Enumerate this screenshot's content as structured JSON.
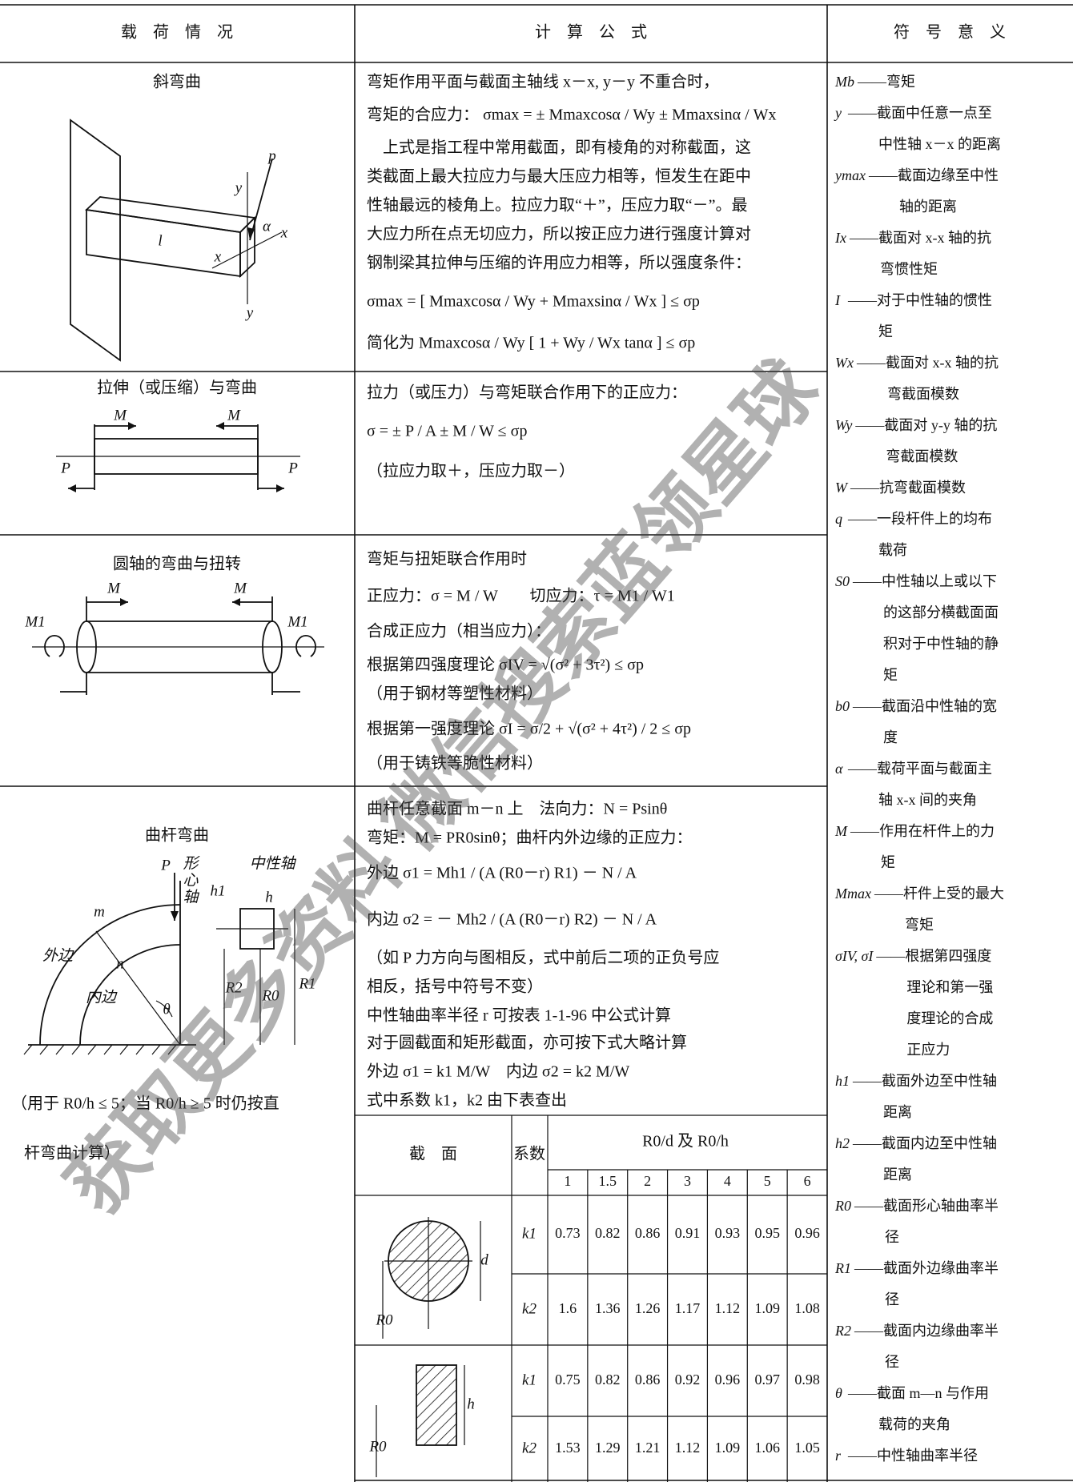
{
  "header": {
    "columns": [
      "载　荷　情　况",
      "计　算　公　式",
      "符　号　意　义"
    ]
  },
  "load_cases": [
    {
      "title": "斜弯曲",
      "figure_labels": [
        "p",
        "y",
        "α",
        "x",
        "l",
        "x",
        "y"
      ],
      "formulas": [
        "弯矩作用平面与截面主轴线 x－x, y－y 不重合时，",
        "弯矩的合应力：  σmax = ± Mmaxcosα / Wy ± Mmaxsinα / Wx",
        "　上式是指工程中常用截面，即有棱角的对称截面，这",
        "类截面上最大拉应力与最大压应力相等，恒发生在距中",
        "性轴最远的棱角上。拉应力取“＋”，压应力取“－”。最",
        "大应力所在点无切应力，所以按正应力进行强度计算对",
        "钢制梁其拉伸与压缩的许用应力相等，所以强度条件：",
        "σmax = [ Mmaxcosα / Wy + Mmaxsinα / Wx ] ≤ σp",
        "简化为 Mmaxcosα / Wy [ 1 + Wy / Wx tanα ] ≤ σp"
      ]
    },
    {
      "title": "拉伸（或压缩）与弯曲",
      "figure_labels": [
        "M",
        "M",
        "P",
        "P"
      ],
      "formulas": [
        "拉力（或压力）与弯矩联合作用下的正应力：",
        "σ = ± P / A ± M / W ≤ σp",
        "（拉应力取＋，压应力取－）"
      ]
    },
    {
      "title": "圆轴的弯曲与扭转",
      "figure_labels": [
        "M",
        "M",
        "M1",
        "M1"
      ],
      "formulas": [
        "弯矩与扭矩联合作用时",
        "正应力：σ = M / W　　切应力：τ = M1 / W1",
        "合成正应力（相当应力）：",
        "根据第四强度理论 σIV = √(σ² + 3τ²) ≤ σp",
        "（用于钢材等塑性材料）",
        "根据第一强度理论 σI = σ/2 + √(σ² + 4τ²) / 2 ≤ σp",
        "（用于铸铁等脆性材料）"
      ]
    },
    {
      "title": "曲杆弯曲",
      "figure_labels": [
        "P",
        "形",
        "心",
        "轴",
        "中性轴",
        "h1",
        "h",
        "m",
        "n",
        "外边",
        "内边",
        "θ",
        "R2",
        "R0",
        "R1"
      ],
      "note": [
        "（用于 R0/h ≤ 5；当 R0/h ≥ 5 时仍按直",
        "杆弯曲计算）"
      ],
      "formulas": [
        "曲杆任意截面 m－n 上　法向力：N = Psinθ",
        "弯矩：M = PR0sinθ；曲杆内外边缘的正应力：",
        "外边 σ1 = Mh1 / (A (R0－r) R1) － N / A",
        "内边 σ2 = － Mh2 / (A (R0－r) R2) － N / A",
        "（如 P 力方向与图相反，式中前后二项的正负号应",
        "相反，括号中符号不变）",
        "中性轴曲率半径 r 可按表 1-1-96 中公式计算",
        "对于圆截面和矩形截面，亦可按下式大略计算",
        "外边 σ1 = k1 M/W　内边 σ2 = k2 M/W",
        "式中系数 k1，k2 由下表查出"
      ]
    }
  ],
  "coefficient_table": {
    "headers": {
      "section": "截　面",
      "coefficient": "系数",
      "ratio": "R0/d 及 R0/h"
    },
    "ratios": [
      1,
      1.5,
      2,
      3,
      4,
      5,
      6
    ],
    "sections": [
      {
        "figure_labels": [
          "d",
          "R0"
        ],
        "rows": [
          {
            "name": "k1",
            "values": [
              0.73,
              0.82,
              0.86,
              0.91,
              0.93,
              0.95,
              0.96
            ]
          },
          {
            "name": "k2",
            "values": [
              1.6,
              1.36,
              1.26,
              1.17,
              1.12,
              1.09,
              1.08
            ]
          }
        ]
      },
      {
        "figure_labels": [
          "h",
          "R0"
        ],
        "rows": [
          {
            "name": "k1",
            "values": [
              0.75,
              0.82,
              0.86,
              0.92,
              0.96,
              0.97,
              0.98
            ]
          },
          {
            "name": "k2",
            "values": [
              1.53,
              1.29,
              1.21,
              1.12,
              1.09,
              1.06,
              1.05
            ]
          }
        ]
      }
    ]
  },
  "symbols": [
    {
      "symbol": "Mb",
      "lines": [
        "——弯矩"
      ]
    },
    {
      "symbol": "y",
      "lines": [
        "——截面中任意一点至",
        "中性轴 x－x 的距离"
      ]
    },
    {
      "symbol": "ymax",
      "lines": [
        "——截面边缘至中性",
        "轴的距离"
      ]
    },
    {
      "symbol": "Ix",
      "lines": [
        "——截面对 x-x 轴的抗",
        "弯惯性矩"
      ]
    },
    {
      "symbol": "I",
      "lines": [
        "——对于中性轴的惯性",
        "矩"
      ]
    },
    {
      "symbol": "Wx",
      "lines": [
        "——截面对 x-x 轴的抗",
        "弯截面模数"
      ]
    },
    {
      "symbol": "Wy",
      "lines": [
        "——截面对 y-y 轴的抗",
        "弯截面模数"
      ]
    },
    {
      "symbol": "W",
      "lines": [
        "——抗弯截面模数"
      ]
    },
    {
      "symbol": "q",
      "lines": [
        "——一段杆件上的均布",
        "载荷"
      ]
    },
    {
      "symbol": "S0",
      "lines": [
        "——中性轴以上或以下",
        "的这部分横截面面",
        "积对于中性轴的静",
        "矩"
      ]
    },
    {
      "symbol": "b0",
      "lines": [
        "——截面沿中性轴的宽",
        "度"
      ]
    },
    {
      "symbol": "α",
      "lines": [
        "——载荷平面与截面主",
        "轴 x-x 间的夹角"
      ]
    },
    {
      "symbol": "M",
      "lines": [
        "——作用在杆件上的力",
        "矩"
      ]
    },
    {
      "symbol": "Mmax",
      "lines": [
        "——杆件上受的最大",
        "弯矩"
      ]
    },
    {
      "symbol": "σIV, σI",
      "lines": [
        "——根据第四强度",
        "理论和第一强",
        "度理论的合成",
        "正应力"
      ]
    },
    {
      "symbol": "h1",
      "lines": [
        "——截面外边至中性轴",
        "距离"
      ]
    },
    {
      "symbol": "h2",
      "lines": [
        "——截面内边至中性轴",
        "距离"
      ]
    },
    {
      "symbol": "R0",
      "lines": [
        "——截面形心轴曲率半",
        "径"
      ]
    },
    {
      "symbol": "R1",
      "lines": [
        "——截面外边缘曲率半",
        "径"
      ]
    },
    {
      "symbol": "R2",
      "lines": [
        "——截面内边缘曲率半",
        "径"
      ]
    },
    {
      "symbol": "θ",
      "lines": [
        "——截面 m—n 与作用",
        "载荷的夹角"
      ]
    },
    {
      "symbol": "r",
      "lines": [
        "——中性轴曲率半径"
      ]
    }
  ],
  "watermark": "获取更多资料 微信搜索蓝领星球"
}
